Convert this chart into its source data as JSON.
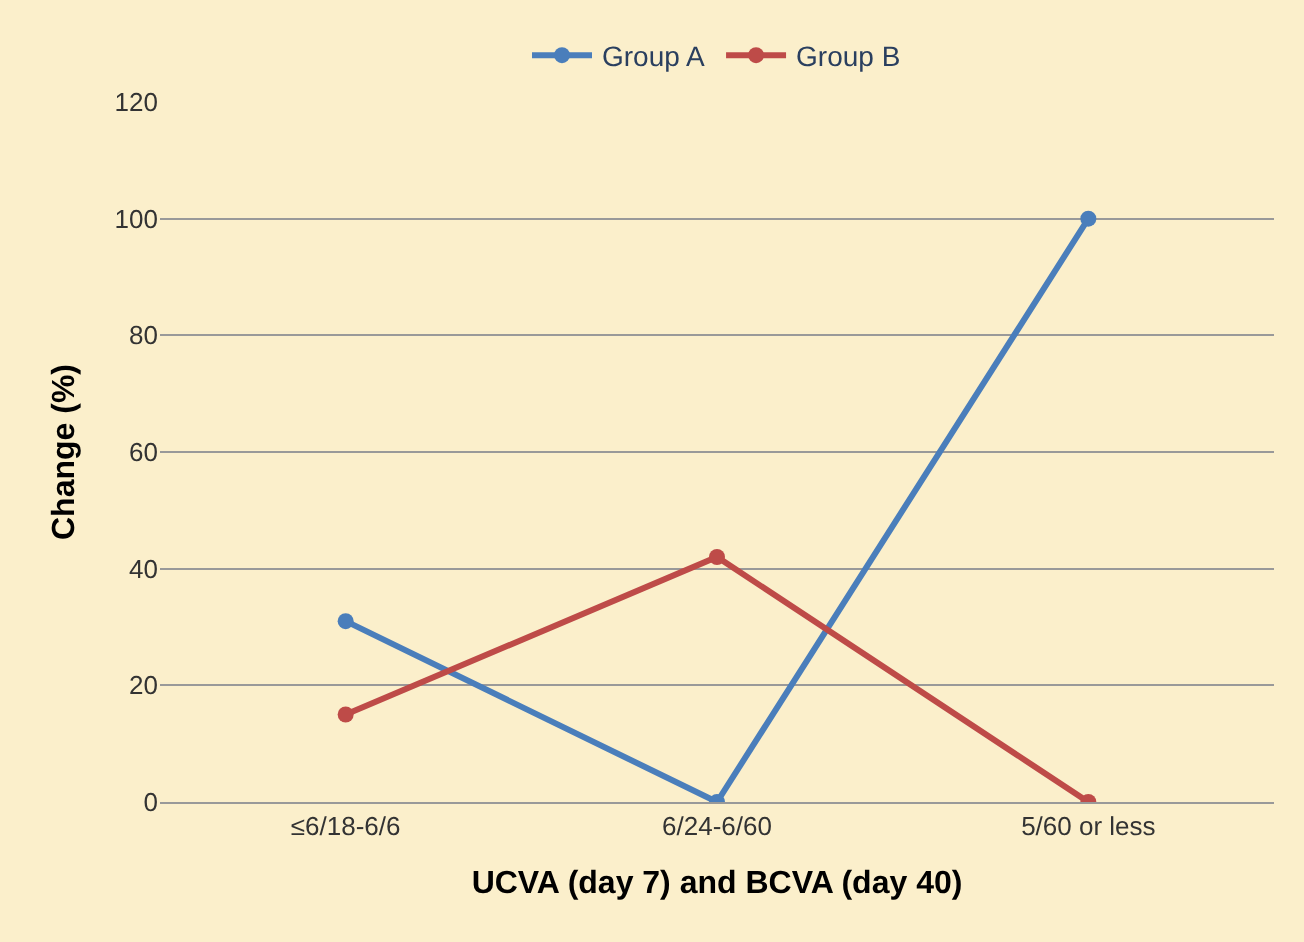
{
  "chart_data": {
    "type": "line",
    "xlabel": "UCVA (day 7) and BCVA (day 40)",
    "ylabel": "Change (%)",
    "categories": [
      "≤6/18-6/6",
      "6/24-6/60",
      "5/60 or less"
    ],
    "series": [
      {
        "name": "Group A",
        "color": "#4a7ebb",
        "values": [
          31,
          0,
          100
        ]
      },
      {
        "name": "Group B",
        "color": "#be4b48",
        "values": [
          15,
          42,
          0
        ]
      }
    ],
    "ylim": [
      0,
      120
    ],
    "yticks": [
      0,
      20,
      40,
      60,
      80,
      100,
      120
    ],
    "grid": "y",
    "legend": "top",
    "marker": "circle",
    "line_style": "solid"
  }
}
